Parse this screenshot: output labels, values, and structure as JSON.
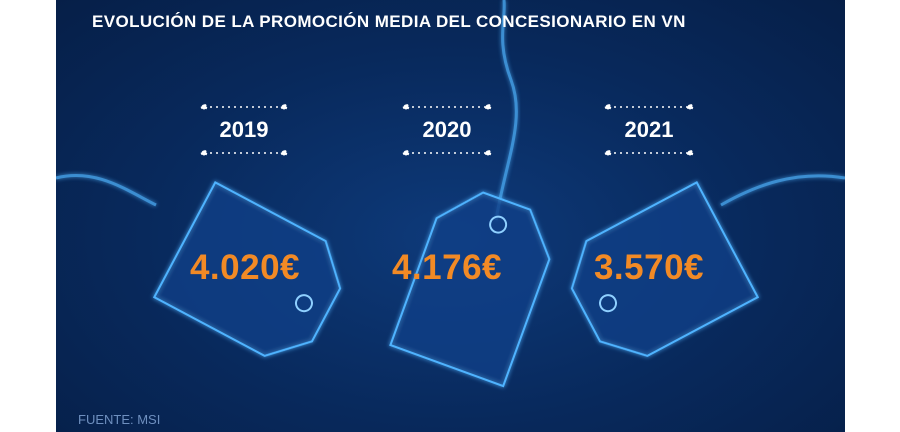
{
  "header": {
    "title": "EVOLUCIÓN DE LA PROMOCIÓN MEDIA DEL CONCESIONARIO EN VN"
  },
  "footer": {
    "source": "FUENTE: MSI"
  },
  "colors": {
    "background": "#082a5e",
    "value": "#f28a25",
    "text": "#ffffff",
    "tag_glow": "#3fa7ff"
  },
  "chart_data": {
    "type": "bar",
    "title": "EVOLUCIÓN DE LA PROMOCIÓN MEDIA DEL CONCESIONARIO EN VN",
    "categories": [
      "2019",
      "2020",
      "2021"
    ],
    "values": [
      4020,
      4176,
      3570
    ],
    "value_labels": [
      "4.020€",
      "4.176€",
      "3.570€"
    ],
    "unit": "€",
    "source": "FUENTE: MSI"
  }
}
